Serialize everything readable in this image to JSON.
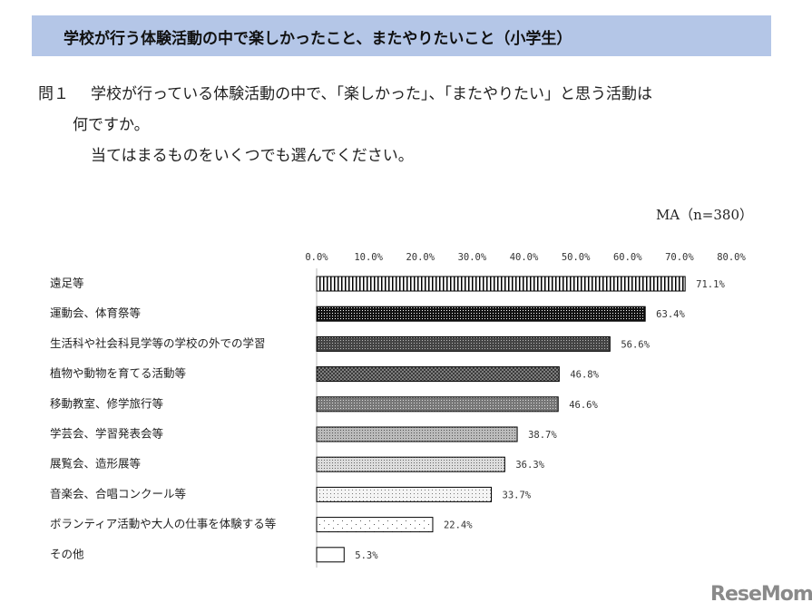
{
  "header": {
    "title": "学校が行う体験活動の中で楽しかったこと、またやりたいこと（小学生）"
  },
  "question": {
    "number": "問１",
    "lines": [
      "学校が行っている体験活動の中で、「楽しかった」、「またやりたい」と思う活動は",
      "何ですか。",
      "当てはまるものをいくつでも選んでください。"
    ]
  },
  "chart_data": {
    "type": "bar",
    "orientation": "horizontal",
    "note": "MA（n=380）",
    "categories": [
      "遠足等",
      "運動会、体育祭等",
      "生活科や社会科見学等の学校の外での学習",
      "植物や動物を育てる活動等",
      "移動教室、修学旅行等",
      "学芸会、学習発表会等",
      "展覧会、造形展等",
      "音楽会、合唱コンクール等",
      "ボランティア活動や大人の仕事を体験する等",
      "その他"
    ],
    "values": [
      71.1,
      63.4,
      56.6,
      46.8,
      46.6,
      38.7,
      36.3,
      33.7,
      22.4,
      5.3
    ],
    "value_labels": [
      "71.1%",
      "63.4%",
      "56.6%",
      "46.8%",
      "46.6%",
      "38.7%",
      "36.3%",
      "33.7%",
      "22.4%",
      "5.3%"
    ],
    "xlim": [
      0,
      80
    ],
    "xticks": [
      {
        "value": 0,
        "label": "0.0%"
      },
      {
        "value": 10,
        "label": "10.0%"
      },
      {
        "value": 20,
        "label": "20.0%"
      },
      {
        "value": 30,
        "label": "30.0%"
      },
      {
        "value": 40,
        "label": "40.0%"
      },
      {
        "value": 50,
        "label": "50.0%"
      },
      {
        "value": 60,
        "label": "60.0%"
      },
      {
        "value": 70,
        "label": "70.0%"
      },
      {
        "value": 80,
        "label": "80.0%"
      }
    ]
  },
  "watermark": "ReseMom"
}
